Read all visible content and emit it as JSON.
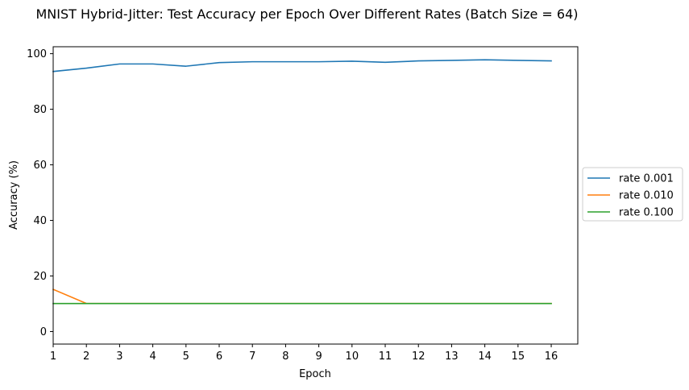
{
  "chart_data": {
    "type": "line",
    "title": "MNIST Hybrid-Jitter: Test Accuracy per Epoch Over Different Rates (Batch Size = 64)",
    "xlabel": "Epoch",
    "ylabel": "Accuracy (%)",
    "x": [
      1,
      2,
      3,
      4,
      5,
      6,
      7,
      8,
      9,
      10,
      11,
      12,
      13,
      14,
      15,
      16
    ],
    "xlim": [
      1,
      16.8
    ],
    "ylim": [
      -4.5,
      102.5
    ],
    "xticks": [
      1,
      2,
      3,
      4,
      5,
      6,
      7,
      8,
      9,
      10,
      11,
      12,
      13,
      14,
      15,
      16
    ],
    "yticks": [
      0,
      20,
      40,
      60,
      80,
      100
    ],
    "grid": false,
    "legend_position": "center-right-outside",
    "series": [
      {
        "name": "rate 0.001",
        "color": "#1f77b4",
        "values": [
          93.6,
          94.8,
          96.3,
          96.3,
          95.5,
          96.8,
          97.1,
          97.1,
          97.1,
          97.3,
          96.9,
          97.4,
          97.6,
          97.8,
          97.6,
          97.4
        ]
      },
      {
        "name": "rate 0.010",
        "color": "#ff7f0e",
        "values": [
          15.2,
          10.1,
          10.1,
          10.1,
          10.1,
          10.1,
          10.1,
          10.1,
          10.1,
          10.1,
          10.1,
          10.1,
          10.1,
          10.1,
          10.1,
          10.1
        ]
      },
      {
        "name": "rate 0.100",
        "color": "#2ca02c",
        "values": [
          10.1,
          10.1,
          10.1,
          10.1,
          10.1,
          10.1,
          10.1,
          10.1,
          10.1,
          10.1,
          10.1,
          10.1,
          10.1,
          10.1,
          10.1,
          10.1
        ]
      }
    ]
  }
}
